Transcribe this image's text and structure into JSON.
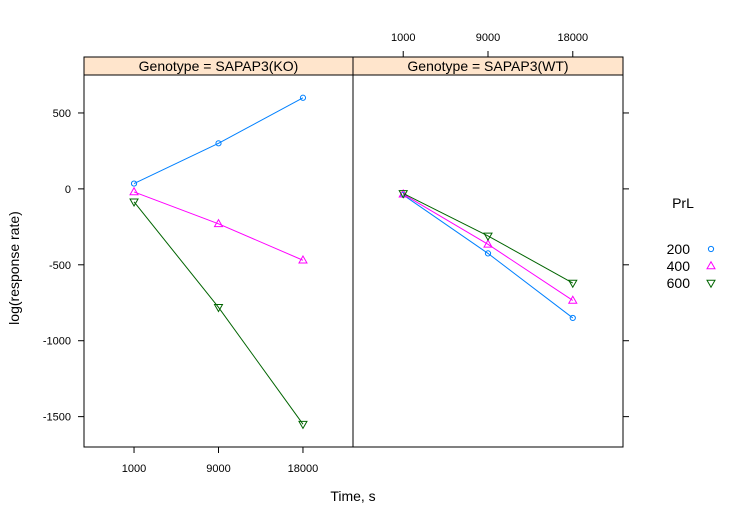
{
  "chart_data": {
    "type": "line",
    "xlabel": "Time, s",
    "ylabel": "log(response rate)",
    "x_tick_labels": [
      "1000",
      "9000",
      "18000"
    ],
    "y_ticks": [
      500,
      0,
      -500,
      -1000,
      -1500
    ],
    "y_tick_labels": [
      "500",
      "0",
      "-500",
      "-1000",
      "-1500"
    ],
    "ylim": [
      -1700,
      750
    ],
    "legend": {
      "title": "PrL",
      "placement": "right",
      "entries": [
        {
          "label": "200",
          "color": "#0080ff",
          "marker": "circle"
        },
        {
          "label": "400",
          "color": "#ff00ff",
          "marker": "triangle-up"
        },
        {
          "label": "600",
          "color": "#006400",
          "marker": "triangle-down"
        }
      ]
    },
    "panels": [
      {
        "strip": "Genotype = SAPAP3(KO)",
        "series": [
          {
            "color": "#0080ff",
            "marker": "circle",
            "values": [
              35,
              300,
              600
            ]
          },
          {
            "color": "#ff00ff",
            "marker": "triangle-up",
            "values": [
              -20,
              -230,
              -470
            ]
          },
          {
            "color": "#006400",
            "marker": "triangle-down",
            "values": [
              -85,
              -780,
              -1550
            ]
          }
        ]
      },
      {
        "strip": "Genotype = SAPAP3(WT)",
        "series": [
          {
            "color": "#0080ff",
            "marker": "circle",
            "values": [
              -40,
              -425,
              -850
            ]
          },
          {
            "color": "#ff00ff",
            "marker": "triangle-up",
            "values": [
              -35,
              -365,
              -735
            ]
          },
          {
            "color": "#006400",
            "marker": "triangle-down",
            "values": [
              -30,
              -310,
              -620
            ]
          }
        ]
      }
    ]
  }
}
